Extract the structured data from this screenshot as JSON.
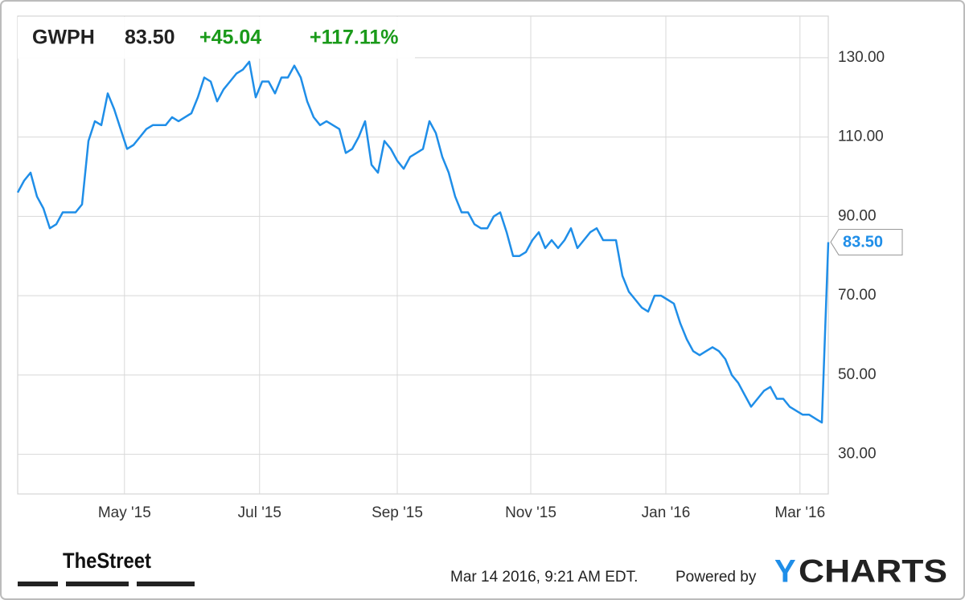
{
  "chart_data": {
    "type": "line",
    "header": {
      "symbol": "GWPH",
      "price": "83.50",
      "change": "+45.04",
      "change_pct": "+117.11%",
      "change_color": "#1a9a1a"
    },
    "series": [
      {
        "name": "GWPH",
        "color": "#1f8ee8",
        "values": [
          96,
          99,
          101,
          95,
          92,
          87,
          88,
          91,
          91,
          91,
          93,
          109,
          114,
          113,
          121,
          117,
          112,
          107,
          108,
          110,
          112,
          113,
          113,
          113,
          115,
          114,
          115,
          116,
          120,
          125,
          124,
          119,
          122,
          124,
          126,
          127,
          129,
          120,
          124,
          124,
          121,
          125,
          125,
          128,
          125,
          119,
          115,
          113,
          114,
          113,
          112,
          106,
          107,
          110,
          114,
          103,
          101,
          109,
          107,
          104,
          102,
          105,
          106,
          107,
          114,
          111,
          105,
          101,
          95,
          91,
          91,
          88,
          87,
          87,
          90,
          91,
          86,
          80,
          80,
          81,
          84,
          86,
          82,
          84,
          82,
          84,
          87,
          82,
          84,
          86,
          87,
          84,
          84,
          84,
          75,
          71,
          69,
          67,
          66,
          70,
          70,
          69,
          68,
          63,
          59,
          56,
          55,
          56,
          57,
          56,
          54,
          50,
          48,
          45,
          42,
          44,
          46,
          47,
          44,
          44,
          42,
          41,
          40,
          40,
          39,
          38,
          83.5
        ]
      }
    ],
    "last_value_label": "83.50",
    "xlim": [
      0,
      126
    ],
    "xticks": [
      {
        "value": 16.6,
        "label": "May '15"
      },
      {
        "value": 37.6,
        "label": "Jul '15"
      },
      {
        "value": 59,
        "label": "Sep '15"
      },
      {
        "value": 79.75,
        "label": "Nov '15"
      },
      {
        "value": 100.75,
        "label": "Jan '16"
      },
      {
        "value": 121.6,
        "label": "Mar '16"
      }
    ],
    "ylim": [
      20,
      140.5
    ],
    "yticks": [
      {
        "value": 30,
        "label": "30.00"
      },
      {
        "value": 50,
        "label": "50.00"
      },
      {
        "value": 70,
        "label": "70.00"
      },
      {
        "value": 90,
        "label": "90.00"
      },
      {
        "value": 110,
        "label": "110.00"
      },
      {
        "value": 130,
        "label": "130.00"
      }
    ],
    "grid": true
  },
  "footer": {
    "brand": "TheStreet",
    "timestamp": "Mar 14 2016, 9:21 AM EDT.",
    "powered_by": "Powered by",
    "logo_y": "Y",
    "logo_rest": "CHARTS"
  }
}
